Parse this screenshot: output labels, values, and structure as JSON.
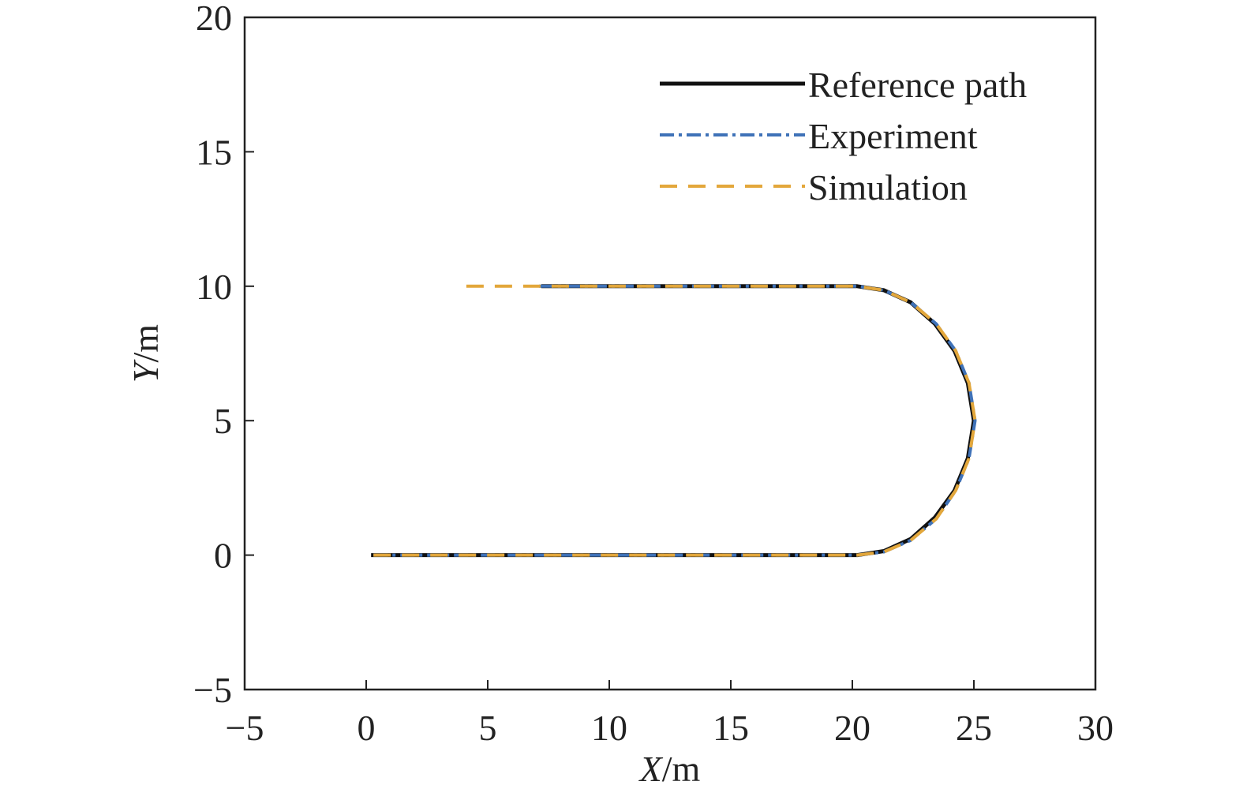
{
  "chart_data": {
    "type": "line",
    "xlabel": {
      "var": "X",
      "unit": "/m"
    },
    "ylabel": {
      "var": "Y",
      "unit": "/m"
    },
    "xlim": [
      -5,
      30
    ],
    "ylim": [
      -5,
      20
    ],
    "xticks": [
      -5,
      0,
      5,
      10,
      15,
      20,
      25,
      30
    ],
    "yticks": [
      -5,
      0,
      5,
      10,
      15,
      20
    ],
    "xtick_labels": [
      "−5",
      "0",
      "5",
      "10",
      "15",
      "20",
      "25",
      "30"
    ],
    "ytick_labels": [
      "−5",
      "0",
      "5",
      "10",
      "15",
      "20"
    ],
    "grid": false,
    "legend_position": "top-right",
    "series": [
      {
        "name": "Reference path",
        "color": "#111111",
        "style": "solid",
        "points": [
          [
            0.2,
            0
          ],
          [
            20.2,
            0
          ],
          [
            21.3,
            0.15
          ],
          [
            22.4,
            0.6
          ],
          [
            23.4,
            1.4
          ],
          [
            24.2,
            2.4
          ],
          [
            24.75,
            3.6
          ],
          [
            25,
            5
          ],
          [
            24.75,
            6.4
          ],
          [
            24.2,
            7.6
          ],
          [
            23.4,
            8.6
          ],
          [
            22.4,
            9.4
          ],
          [
            21.3,
            9.85
          ],
          [
            20.2,
            10
          ],
          [
            7.2,
            10
          ]
        ]
      },
      {
        "name": "Experiment",
        "color": "#3f72b8",
        "style": "dash-dot",
        "points": [
          [
            0.3,
            0
          ],
          [
            20.2,
            0
          ],
          [
            21.3,
            0.12
          ],
          [
            22.4,
            0.55
          ],
          [
            23.45,
            1.35
          ],
          [
            24.25,
            2.4
          ],
          [
            24.8,
            3.6
          ],
          [
            25.05,
            5
          ],
          [
            24.8,
            6.4
          ],
          [
            24.25,
            7.6
          ],
          [
            23.45,
            8.6
          ],
          [
            22.4,
            9.4
          ],
          [
            21.3,
            9.85
          ],
          [
            20.2,
            10
          ],
          [
            7.1,
            10
          ]
        ]
      },
      {
        "name": "Simulation",
        "color": "#e3a73b",
        "style": "dashed",
        "points": [
          [
            0.3,
            0
          ],
          [
            20.2,
            0
          ],
          [
            21.3,
            0.12
          ],
          [
            22.4,
            0.55
          ],
          [
            23.45,
            1.35
          ],
          [
            24.25,
            2.4
          ],
          [
            24.8,
            3.6
          ],
          [
            25.05,
            5
          ],
          [
            24.8,
            6.4
          ],
          [
            24.25,
            7.6
          ],
          [
            23.45,
            8.6
          ],
          [
            22.4,
            9.4
          ],
          [
            21.3,
            9.85
          ],
          [
            20.2,
            10
          ],
          [
            3.8,
            10
          ]
        ]
      }
    ]
  }
}
